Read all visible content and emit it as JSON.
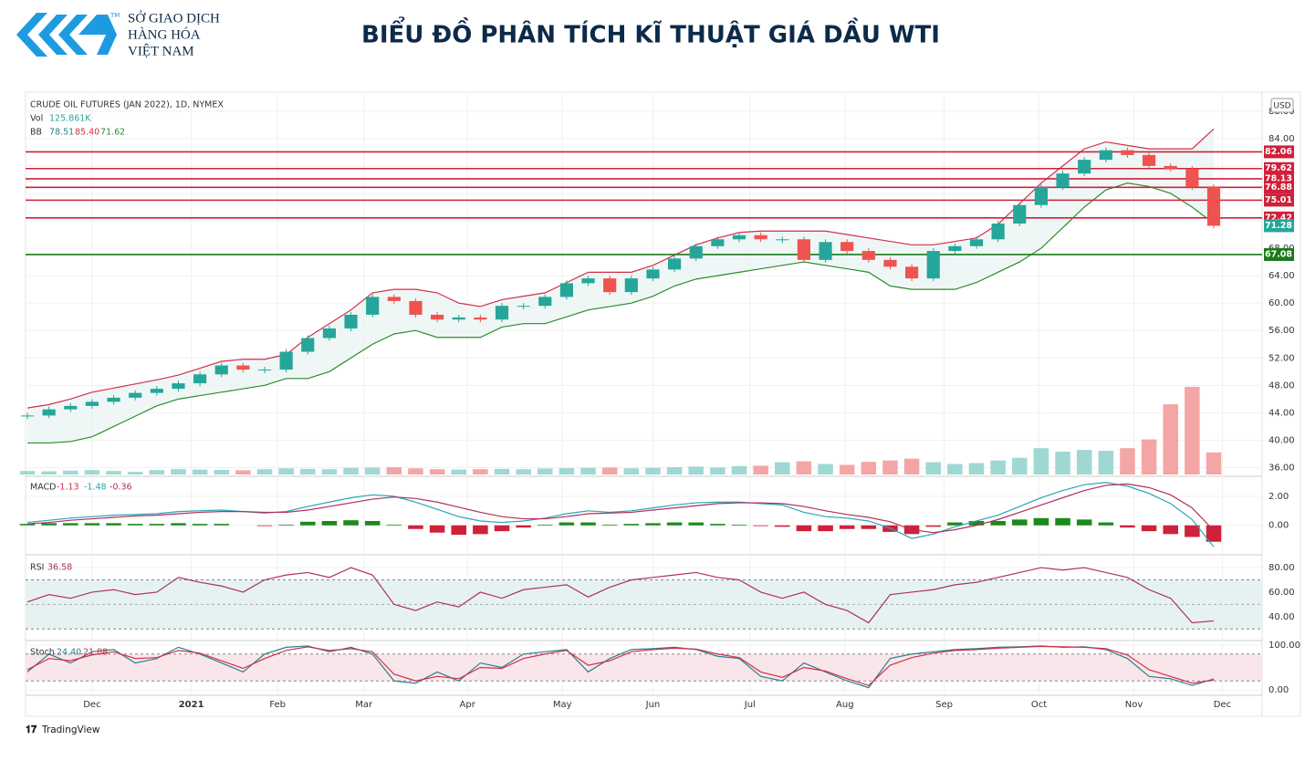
{
  "header": {
    "logo_lines": [
      "SỞ GIAO DỊCH",
      "HÀNG HÓA",
      "VIỆT NAM"
    ],
    "logo_tm": "TM",
    "title": "BIỂU ĐỒ PHÂN TÍCH KĨ THUẬT GIÁ DẦU WTI"
  },
  "chart_data": {
    "type": "candlestick",
    "symbol": "CRUDE OIL FUTURES (JAN 2022), 1D, NYMEX",
    "currency": "USD",
    "vol_label": "Vol",
    "vol_value": "125.861K",
    "bb_label": "BB",
    "bb_legend": [
      "78.51",
      "85.40",
      "71.62"
    ],
    "close": [
      43.6,
      44.5,
      45.0,
      45.6,
      46.2,
      46.9,
      47.5,
      48.3,
      49.6,
      50.9,
      50.3,
      50.3,
      52.9,
      54.9,
      56.3,
      58.3,
      60.9,
      60.3,
      58.3,
      57.6,
      57.9,
      57.6,
      59.6,
      59.6,
      60.9,
      62.9,
      63.6,
      61.6,
      63.6,
      64.9,
      66.5,
      68.3,
      69.3,
      69.9,
      69.3,
      69.3,
      66.3,
      68.9,
      67.6,
      66.3,
      65.3,
      63.6,
      67.6,
      68.3,
      69.3,
      71.6,
      74.3,
      76.9,
      78.9,
      80.9,
      82.3,
      81.6,
      80.0,
      79.6,
      76.9,
      71.28
    ],
    "bb_upper": [
      44.7,
      45.2,
      46.0,
      47.0,
      47.6,
      48.2,
      48.8,
      49.5,
      50.5,
      51.5,
      51.8,
      51.8,
      52.5,
      55.0,
      57.0,
      59.0,
      61.5,
      62.0,
      62.0,
      61.5,
      60.0,
      59.5,
      60.5,
      61.0,
      61.5,
      63.0,
      64.5,
      64.5,
      64.5,
      65.5,
      67.0,
      68.5,
      69.5,
      70.3,
      70.5,
      70.5,
      70.5,
      70.5,
      70.0,
      69.5,
      69.0,
      68.5,
      68.5,
      69.0,
      69.5,
      71.5,
      74.5,
      77.5,
      80.0,
      82.5,
      83.5,
      83.0,
      82.5,
      82.5,
      82.5,
      85.4
    ],
    "bb_lower": [
      39.6,
      39.6,
      39.8,
      40.5,
      42.0,
      43.5,
      45.0,
      46.0,
      46.5,
      47.0,
      47.5,
      48.0,
      49.0,
      49.0,
      50.0,
      52.0,
      54.0,
      55.5,
      56.0,
      55.0,
      55.0,
      55.0,
      56.5,
      57.0,
      57.0,
      58.0,
      59.0,
      59.5,
      60.0,
      61.0,
      62.5,
      63.5,
      64.0,
      64.5,
      65.0,
      65.5,
      66.0,
      65.5,
      65.0,
      64.5,
      62.5,
      62.0,
      62.0,
      62.0,
      63.0,
      64.5,
      66.0,
      68.0,
      71.0,
      74.0,
      76.5,
      77.5,
      77.0,
      76.0,
      74.0,
      71.62
    ],
    "volume": [
      20,
      18,
      22,
      25,
      20,
      15,
      25,
      30,
      28,
      26,
      24,
      30,
      35,
      32,
      30,
      38,
      40,
      42,
      35,
      30,
      28,
      30,
      32,
      30,
      34,
      36,
      38,
      40,
      35,
      38,
      42,
      45,
      40,
      48,
      50,
      70,
      75,
      60,
      55,
      72,
      80,
      90,
      70,
      60,
      65,
      80,
      95,
      150,
      130,
      140,
      135,
      150,
      200,
      400,
      500,
      125.861
    ],
    "vol_ylim": [
      0,
      520
    ],
    "ylim": [
      35,
      90.5
    ],
    "yticks": [
      {
        "value": 36,
        "label": "36.00"
      },
      {
        "value": 40,
        "label": "40.00"
      },
      {
        "value": 44,
        "label": "44.00"
      },
      {
        "value": 48,
        "label": "48.00"
      },
      {
        "value": 52,
        "label": "52.00"
      },
      {
        "value": 56,
        "label": "56.00"
      },
      {
        "value": 60,
        "label": "60.00"
      },
      {
        "value": 64,
        "label": "64.00"
      },
      {
        "value": 68,
        "label": "68.00"
      },
      {
        "value": 72,
        "label": "72.00"
      },
      {
        "value": 76,
        "label": "76.00"
      },
      {
        "value": 80,
        "label": "80.00"
      },
      {
        "value": 84,
        "label": "84.00"
      },
      {
        "value": 88,
        "label": "88.00"
      }
    ],
    "resistance": [
      82.06,
      79.62,
      78.13,
      76.88,
      75.01,
      72.42
    ],
    "support": [
      67.08
    ],
    "last_price": 71.28,
    "xlim": [
      0,
      55
    ],
    "xticks": [
      {
        "value": 3,
        "label": "Dec"
      },
      {
        "value": 7.6,
        "label": "2021"
      },
      {
        "value": 11.6,
        "label": "Feb"
      },
      {
        "value": 15.6,
        "label": "Mar"
      },
      {
        "value": 20.4,
        "label": "Apr"
      },
      {
        "value": 24.8,
        "label": "May"
      },
      {
        "value": 29,
        "label": "Jun"
      },
      {
        "value": 33.5,
        "label": "Jul"
      },
      {
        "value": 37.9,
        "label": "Aug"
      },
      {
        "value": 42.5,
        "label": "Sep"
      },
      {
        "value": 46.9,
        "label": "Oct"
      },
      {
        "value": 51.3,
        "label": "Nov"
      },
      {
        "value": 55.4,
        "label": "Dec"
      }
    ],
    "grid": true,
    "macd": {
      "label": "MACD",
      "legend": [
        "-1.13",
        "-1.48",
        "-0.36"
      ],
      "histogram": [
        0.1,
        0.15,
        0.15,
        0.15,
        0.15,
        0.1,
        0.1,
        0.15,
        0.1,
        0.1,
        0.0,
        -0.05,
        0.05,
        0.25,
        0.3,
        0.35,
        0.3,
        0.05,
        -0.25,
        -0.5,
        -0.65,
        -0.6,
        -0.4,
        -0.15,
        0.05,
        0.2,
        0.2,
        0.05,
        0.1,
        0.15,
        0.2,
        0.2,
        0.1,
        0.05,
        -0.05,
        -0.1,
        -0.4,
        -0.4,
        -0.25,
        -0.25,
        -0.45,
        -0.6,
        -0.1,
        0.2,
        0.3,
        0.3,
        0.4,
        0.5,
        0.5,
        0.4,
        0.2,
        -0.15,
        -0.4,
        -0.6,
        -0.8,
        -1.13
      ],
      "macd": [
        0.2,
        0.35,
        0.5,
        0.6,
        0.7,
        0.75,
        0.8,
        0.95,
        1.0,
        1.05,
        0.95,
        0.85,
        0.95,
        1.3,
        1.6,
        1.9,
        2.1,
        2.0,
        1.6,
        1.1,
        0.6,
        0.3,
        0.2,
        0.3,
        0.5,
        0.8,
        1.0,
        0.9,
        1.0,
        1.2,
        1.4,
        1.55,
        1.6,
        1.6,
        1.5,
        1.4,
        0.9,
        0.6,
        0.5,
        0.3,
        -0.2,
        -0.9,
        -0.6,
        -0.1,
        0.3,
        0.7,
        1.3,
        1.9,
        2.4,
        2.8,
        2.95,
        2.7,
        2.2,
        1.5,
        0.4,
        -1.48
      ],
      "signal": [
        0.1,
        0.2,
        0.35,
        0.45,
        0.55,
        0.65,
        0.7,
        0.8,
        0.9,
        0.95,
        0.95,
        0.9,
        0.9,
        1.05,
        1.3,
        1.55,
        1.8,
        1.95,
        1.85,
        1.6,
        1.25,
        0.9,
        0.6,
        0.45,
        0.45,
        0.6,
        0.8,
        0.85,
        0.9,
        1.05,
        1.2,
        1.35,
        1.5,
        1.55,
        1.55,
        1.5,
        1.3,
        1.0,
        0.75,
        0.55,
        0.25,
        -0.3,
        -0.5,
        -0.3,
        0.0,
        0.4,
        0.9,
        1.4,
        1.9,
        2.4,
        2.75,
        2.85,
        2.6,
        2.1,
        1.2,
        -0.36
      ],
      "ylim": [
        -1.9,
        3.25
      ],
      "yticks": [
        {
          "value": 0,
          "label": "0.00"
        },
        {
          "value": 2,
          "label": "2.00"
        }
      ]
    },
    "rsi": {
      "label": "RSI",
      "legend": "36.58",
      "values": [
        52,
        58,
        55,
        60,
        62,
        58,
        60,
        72,
        68,
        65,
        60,
        70,
        74,
        76,
        72,
        80,
        74,
        50,
        45,
        52,
        48,
        60,
        55,
        62,
        64,
        66,
        56,
        64,
        70,
        72,
        74,
        76,
        72,
        70,
        60,
        55,
        60,
        50,
        45,
        35,
        58,
        60,
        62,
        66,
        68,
        72,
        76,
        80,
        78,
        80,
        76,
        72,
        62,
        55,
        35,
        36.58
      ],
      "band": [
        30,
        70
      ],
      "middle": 50,
      "ylim": [
        22,
        87.5
      ],
      "yticks": [
        {
          "value": 40,
          "label": "40.00"
        },
        {
          "value": 60,
          "label": "60.00"
        },
        {
          "value": 80,
          "label": "80.00"
        }
      ]
    },
    "stoch": {
      "label": "Stoch",
      "legend": [
        "24.40",
        "21.88"
      ],
      "k": [
        40,
        80,
        60,
        85,
        90,
        60,
        70,
        95,
        80,
        60,
        40,
        80,
        95,
        98,
        85,
        95,
        80,
        20,
        15,
        40,
        20,
        60,
        50,
        80,
        85,
        90,
        40,
        70,
        90,
        92,
        95,
        90,
        75,
        70,
        30,
        20,
        60,
        40,
        20,
        5,
        70,
        80,
        85,
        90,
        92,
        95,
        96,
        98,
        95,
        96,
        90,
        70,
        30,
        25,
        10,
        24.4
      ],
      "d": [
        45,
        70,
        65,
        78,
        85,
        70,
        72,
        88,
        82,
        65,
        48,
        70,
        88,
        96,
        88,
        92,
        85,
        35,
        20,
        30,
        25,
        50,
        48,
        70,
        80,
        88,
        55,
        65,
        85,
        90,
        93,
        91,
        80,
        72,
        40,
        28,
        50,
        42,
        25,
        10,
        55,
        72,
        82,
        88,
        90,
        93,
        95,
        97,
        96,
        95,
        92,
        78,
        45,
        30,
        15,
        21.88
      ],
      "band": [
        20,
        80
      ],
      "ylim": [
        -8,
        106
      ],
      "yticks": [
        {
          "value": 0,
          "label": "0.00"
        },
        {
          "value": 100,
          "label": "100.00"
        }
      ]
    },
    "source": "TradingView"
  }
}
